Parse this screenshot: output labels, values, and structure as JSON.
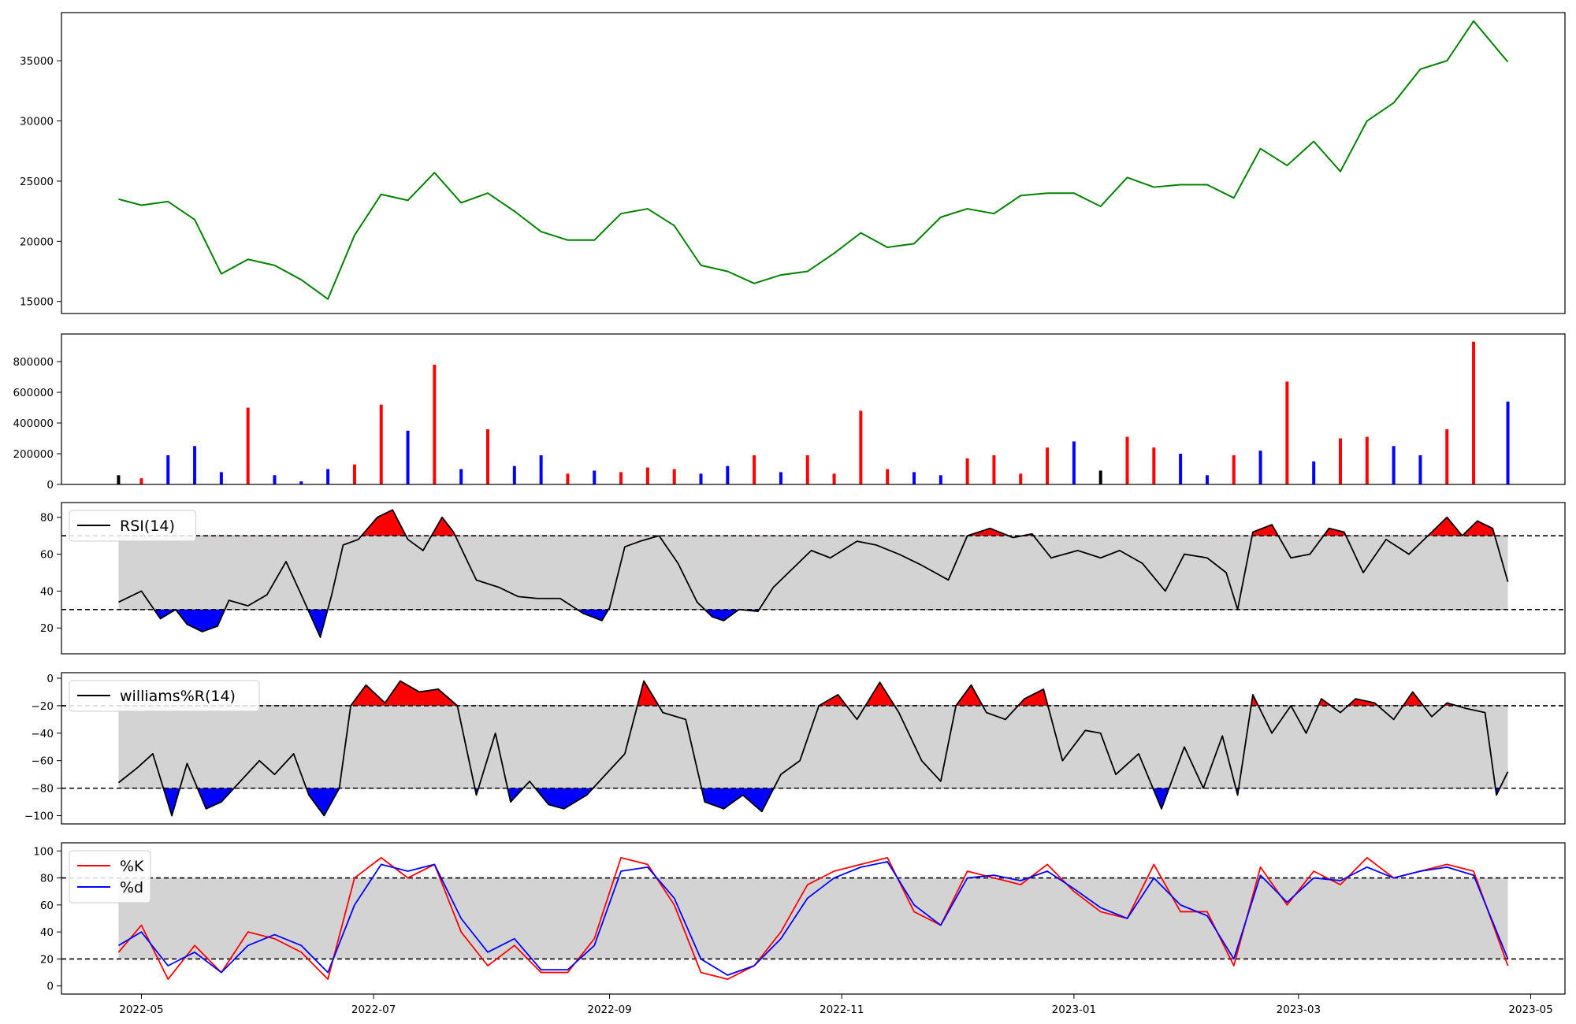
{
  "figure": {
    "x_ticks": [
      "2022-05",
      "2022-07",
      "2022-09",
      "2022-11",
      "2023-01",
      "2023-03",
      "2023-05"
    ]
  },
  "colors": {
    "price": "#008000",
    "up": "#ff0000",
    "down": "#0000ff",
    "flat": "#000000",
    "band": "#d3d3d3",
    "k": "#ff0000",
    "d": "#0000ff"
  },
  "chart_data": [
    {
      "type": "line",
      "x_range": [
        "2022-04-25",
        "2023-04-25"
      ],
      "y_ticks": [
        "15000",
        "20000",
        "25000",
        "30000",
        "35000"
      ],
      "ylim": [
        14000,
        39000
      ],
      "series": [
        {
          "x": [
            "2022-04-25",
            "2022-05-01",
            "2022-05-08",
            "2022-05-15",
            "2022-05-22",
            "2022-05-29",
            "2022-06-05",
            "2022-06-12",
            "2022-06-19",
            "2022-06-26",
            "2022-07-03",
            "2022-07-10",
            "2022-07-17",
            "2022-07-24",
            "2022-07-31",
            "2022-08-07",
            "2022-08-14",
            "2022-08-21",
            "2022-08-28",
            "2022-09-04",
            "2022-09-11",
            "2022-09-18",
            "2022-09-25",
            "2022-10-02",
            "2022-10-09",
            "2022-10-16",
            "2022-10-23",
            "2022-10-30",
            "2022-11-06",
            "2022-11-13",
            "2022-11-20",
            "2022-11-27",
            "2022-12-04",
            "2022-12-11",
            "2022-12-18",
            "2022-12-25",
            "2023-01-01",
            "2023-01-08",
            "2023-01-15",
            "2023-01-22",
            "2023-01-29",
            "2023-02-05",
            "2023-02-12",
            "2023-02-19",
            "2023-02-26",
            "2023-03-05",
            "2023-03-12",
            "2023-03-19",
            "2023-03-26",
            "2023-04-02",
            "2023-04-09",
            "2023-04-16",
            "2023-04-25"
          ],
          "y": [
            23500,
            23000,
            23300,
            21800,
            17300,
            18500,
            18000,
            16800,
            15200,
            20500,
            23900,
            23400,
            25700,
            23200,
            24000,
            22500,
            20800,
            20100,
            20100,
            22300,
            22700,
            21300,
            18000,
            17500,
            16500,
            17200,
            17500,
            19000,
            20700,
            19500,
            19800,
            22000,
            22700,
            22300,
            23800,
            24000,
            24000,
            22900,
            25300,
            24500,
            24700,
            24700,
            23600,
            27700,
            26300,
            28300,
            25800,
            30000,
            31500,
            34300,
            35000,
            38300,
            34900
          ]
        }
      ]
    },
    {
      "type": "bar",
      "x_range": [
        "2022-04-25",
        "2023-04-25"
      ],
      "y_ticks": [
        "0",
        "200000",
        "400000",
        "600000",
        "800000"
      ],
      "ylim": [
        0,
        980000
      ],
      "x": [
        "2022-04-25",
        "2022-05-01",
        "2022-05-08",
        "2022-05-15",
        "2022-05-22",
        "2022-05-29",
        "2022-06-05",
        "2022-06-12",
        "2022-06-19",
        "2022-06-26",
        "2022-07-03",
        "2022-07-10",
        "2022-07-17",
        "2022-07-24",
        "2022-07-31",
        "2022-08-07",
        "2022-08-14",
        "2022-08-21",
        "2022-08-28",
        "2022-09-04",
        "2022-09-11",
        "2022-09-18",
        "2022-09-25",
        "2022-10-02",
        "2022-10-09",
        "2022-10-16",
        "2022-10-23",
        "2022-10-30",
        "2022-11-06",
        "2022-11-13",
        "2022-11-20",
        "2022-11-27",
        "2022-12-04",
        "2022-12-11",
        "2022-12-18",
        "2022-12-25",
        "2023-01-01",
        "2023-01-08",
        "2023-01-15",
        "2023-01-22",
        "2023-01-29",
        "2023-02-05",
        "2023-02-12",
        "2023-02-19",
        "2023-02-26",
        "2023-03-05",
        "2023-03-12",
        "2023-03-19",
        "2023-03-26",
        "2023-04-02",
        "2023-04-09",
        "2023-04-16",
        "2023-04-25"
      ],
      "values": [
        60000,
        40000,
        190000,
        250000,
        80000,
        500000,
        60000,
        20000,
        100000,
        130000,
        520000,
        350000,
        780000,
        100000,
        360000,
        120000,
        190000,
        70000,
        90000,
        80000,
        110000,
        100000,
        70000,
        120000,
        190000,
        80000,
        190000,
        70000,
        480000,
        100000,
        80000,
        60000,
        170000,
        190000,
        70000,
        240000,
        280000,
        90000,
        310000,
        240000,
        200000,
        60000,
        190000,
        220000,
        670000,
        150000,
        300000,
        310000,
        250000,
        190000,
        360000,
        930000,
        540000
      ],
      "direction": [
        "flat",
        "up",
        "down",
        "down",
        "down",
        "up",
        "down",
        "down",
        "down",
        "up",
        "up",
        "down",
        "up",
        "down",
        "up",
        "down",
        "down",
        "up",
        "down",
        "up",
        "up",
        "up",
        "down",
        "down",
        "up",
        "down",
        "up",
        "up",
        "up",
        "up",
        "down",
        "down",
        "up",
        "up",
        "up",
        "up",
        "down",
        "flat",
        "up",
        "up",
        "down",
        "down",
        "up",
        "down",
        "up",
        "down",
        "up",
        "up",
        "down",
        "down",
        "up",
        "up",
        "down"
      ]
    },
    {
      "type": "line",
      "x_range": [
        "2022-04-25",
        "2023-04-25"
      ],
      "y_ticks": [
        "20",
        "40",
        "60",
        "80"
      ],
      "ylim": [
        6,
        88
      ],
      "thresholds": [
        30,
        70
      ],
      "series": [
        {
          "name": "RSI(14)",
          "x": [
            "2022-04-25",
            "2022-05-01",
            "2022-05-06",
            "2022-05-10",
            "2022-05-13",
            "2022-05-17",
            "2022-05-21",
            "2022-05-24",
            "2022-05-29",
            "2022-06-03",
            "2022-06-08",
            "2022-06-12",
            "2022-06-17",
            "2022-06-20",
            "2022-06-23",
            "2022-06-27",
            "2022-07-02",
            "2022-07-06",
            "2022-07-10",
            "2022-07-14",
            "2022-07-19",
            "2022-07-22",
            "2022-07-28",
            "2022-08-03",
            "2022-08-08",
            "2022-08-13",
            "2022-08-19",
            "2022-08-25",
            "2022-08-30",
            "2022-09-01",
            "2022-09-05",
            "2022-09-09",
            "2022-09-14",
            "2022-09-19",
            "2022-09-24",
            "2022-09-28",
            "2022-10-01",
            "2022-10-05",
            "2022-10-10",
            "2022-10-14",
            "2022-10-18",
            "2022-10-24",
            "2022-10-29",
            "2022-11-05",
            "2022-11-10",
            "2022-11-16",
            "2022-11-22",
            "2022-11-29",
            "2022-12-04",
            "2022-12-10",
            "2022-12-16",
            "2022-12-21",
            "2022-12-26",
            "2023-01-02",
            "2023-01-08",
            "2023-01-13",
            "2023-01-19",
            "2023-01-25",
            "2023-01-30",
            "2023-02-05",
            "2023-02-10",
            "2023-02-13",
            "2023-02-17",
            "2023-02-22",
            "2023-02-27",
            "2023-03-04",
            "2023-03-09",
            "2023-03-13",
            "2023-03-18",
            "2023-03-24",
            "2023-03-30",
            "2023-04-04",
            "2023-04-09",
            "2023-04-13",
            "2023-04-17",
            "2023-04-21",
            "2023-04-25"
          ],
          "y": [
            34,
            40,
            25,
            30,
            22,
            18,
            21,
            35,
            32,
            38,
            56,
            38,
            15,
            38,
            65,
            68,
            80,
            84,
            68,
            62,
            80,
            72,
            46,
            42,
            37,
            36,
            36,
            28,
            24,
            31,
            64,
            67,
            70,
            55,
            34,
            26,
            24,
            30,
            29,
            42,
            50,
            62,
            58,
            67,
            65,
            60,
            54,
            46,
            70,
            74,
            69,
            71,
            58,
            62,
            58,
            62,
            55,
            40,
            60,
            58,
            50,
            30,
            72,
            76,
            58,
            60,
            74,
            72,
            50,
            68,
            60,
            70,
            80,
            70,
            78,
            74,
            45
          ]
        }
      ]
    },
    {
      "type": "line",
      "x_range": [
        "2022-04-25",
        "2023-04-25"
      ],
      "y_ticks": [
        "0",
        "−20",
        "−40",
        "−60",
        "−80",
        "−100"
      ],
      "ylim": [
        -106,
        4
      ],
      "thresholds": [
        -20,
        -80
      ],
      "series": [
        {
          "name": "williams%R(14)",
          "x": [
            "2022-04-25",
            "2022-04-30",
            "2022-05-04",
            "2022-05-09",
            "2022-05-13",
            "2022-05-18",
            "2022-05-22",
            "2022-05-27",
            "2022-06-01",
            "2022-06-05",
            "2022-06-10",
            "2022-06-14",
            "2022-06-18",
            "2022-06-22",
            "2022-06-25",
            "2022-06-29",
            "2022-07-04",
            "2022-07-08",
            "2022-07-13",
            "2022-07-18",
            "2022-07-23",
            "2022-07-28",
            "2022-08-02",
            "2022-08-06",
            "2022-08-11",
            "2022-08-16",
            "2022-08-20",
            "2022-08-26",
            "2022-08-31",
            "2022-09-05",
            "2022-09-10",
            "2022-09-15",
            "2022-09-21",
            "2022-09-26",
            "2022-10-01",
            "2022-10-06",
            "2022-10-11",
            "2022-10-16",
            "2022-10-21",
            "2022-10-26",
            "2022-10-31",
            "2022-11-05",
            "2022-11-11",
            "2022-11-16",
            "2022-11-22",
            "2022-11-27",
            "2022-12-01",
            "2022-12-05",
            "2022-12-09",
            "2022-12-14",
            "2022-12-19",
            "2022-12-24",
            "2022-12-29",
            "2023-01-04",
            "2023-01-08",
            "2023-01-12",
            "2023-01-18",
            "2023-01-24",
            "2023-01-30",
            "2023-02-04",
            "2023-02-09",
            "2023-02-13",
            "2023-02-17",
            "2023-02-22",
            "2023-02-27",
            "2023-03-03",
            "2023-03-07",
            "2023-03-12",
            "2023-03-16",
            "2023-03-21",
            "2023-03-26",
            "2023-03-31",
            "2023-04-05",
            "2023-04-09",
            "2023-04-14",
            "2023-04-19",
            "2023-04-22",
            "2023-04-25"
          ],
          "y": [
            -76,
            -65,
            -55,
            -100,
            -62,
            -95,
            -90,
            -75,
            -60,
            -70,
            -55,
            -85,
            -100,
            -80,
            -20,
            -5,
            -18,
            -2,
            -10,
            -8,
            -20,
            -85,
            -40,
            -90,
            -75,
            -92,
            -95,
            -85,
            -70,
            -55,
            -2,
            -25,
            -30,
            -90,
            -95,
            -85,
            -97,
            -70,
            -60,
            -20,
            -12,
            -30,
            -3,
            -25,
            -60,
            -75,
            -20,
            -5,
            -25,
            -30,
            -15,
            -8,
            -60,
            -38,
            -40,
            -70,
            -55,
            -95,
            -50,
            -80,
            -42,
            -85,
            -12,
            -40,
            -20,
            -40,
            -15,
            -25,
            -15,
            -18,
            -30,
            -10,
            -28,
            -18,
            -22,
            -25,
            -85,
            -68
          ]
        }
      ]
    },
    {
      "type": "line",
      "x_range": [
        "2022-04-25",
        "2023-04-25"
      ],
      "y_ticks": [
        "0",
        "20",
        "40",
        "60",
        "80",
        "100"
      ],
      "ylim": [
        -6,
        106
      ],
      "thresholds": [
        20,
        80
      ],
      "series": [
        {
          "name": "%K",
          "x": [
            "2022-04-25",
            "2022-05-01",
            "2022-05-08",
            "2022-05-15",
            "2022-05-22",
            "2022-05-29",
            "2022-06-05",
            "2022-06-12",
            "2022-06-19",
            "2022-06-26",
            "2022-07-03",
            "2022-07-10",
            "2022-07-17",
            "2022-07-24",
            "2022-07-31",
            "2022-08-07",
            "2022-08-14",
            "2022-08-21",
            "2022-08-28",
            "2022-09-04",
            "2022-09-11",
            "2022-09-18",
            "2022-09-25",
            "2022-10-02",
            "2022-10-09",
            "2022-10-16",
            "2022-10-23",
            "2022-10-30",
            "2022-11-06",
            "2022-11-13",
            "2022-11-20",
            "2022-11-27",
            "2022-12-04",
            "2022-12-11",
            "2022-12-18",
            "2022-12-25",
            "2023-01-01",
            "2023-01-08",
            "2023-01-15",
            "2023-01-22",
            "2023-01-29",
            "2023-02-05",
            "2023-02-12",
            "2023-02-19",
            "2023-02-26",
            "2023-03-05",
            "2023-03-12",
            "2023-03-19",
            "2023-03-26",
            "2023-04-02",
            "2023-04-09",
            "2023-04-16",
            "2023-04-25"
          ],
          "y": [
            25,
            45,
            5,
            30,
            10,
            40,
            35,
            25,
            5,
            80,
            95,
            80,
            90,
            40,
            15,
            30,
            10,
            10,
            35,
            95,
            90,
            60,
            10,
            5,
            15,
            40,
            75,
            85,
            90,
            95,
            55,
            45,
            85,
            80,
            75,
            90,
            70,
            55,
            50,
            90,
            55,
            55,
            15,
            88,
            60,
            85,
            75,
            95,
            80,
            85,
            90,
            85,
            15
          ]
        },
        {
          "name": "%d",
          "x": [
            "2022-04-25",
            "2022-05-01",
            "2022-05-08",
            "2022-05-15",
            "2022-05-22",
            "2022-05-29",
            "2022-06-05",
            "2022-06-12",
            "2022-06-19",
            "2022-06-26",
            "2022-07-03",
            "2022-07-10",
            "2022-07-17",
            "2022-07-24",
            "2022-07-31",
            "2022-08-07",
            "2022-08-14",
            "2022-08-21",
            "2022-08-28",
            "2022-09-04",
            "2022-09-11",
            "2022-09-18",
            "2022-09-25",
            "2022-10-02",
            "2022-10-09",
            "2022-10-16",
            "2022-10-23",
            "2022-10-30",
            "2022-11-06",
            "2022-11-13",
            "2022-11-20",
            "2022-11-27",
            "2022-12-04",
            "2022-12-11",
            "2022-12-18",
            "2022-12-25",
            "2023-01-01",
            "2023-01-08",
            "2023-01-15",
            "2023-01-22",
            "2023-01-29",
            "2023-02-05",
            "2023-02-12",
            "2023-02-19",
            "2023-02-26",
            "2023-03-05",
            "2023-03-12",
            "2023-03-19",
            "2023-03-26",
            "2023-04-02",
            "2023-04-09",
            "2023-04-16",
            "2023-04-25"
          ],
          "y": [
            30,
            40,
            15,
            25,
            10,
            30,
            38,
            30,
            10,
            60,
            90,
            85,
            90,
            50,
            25,
            35,
            12,
            12,
            30,
            85,
            88,
            65,
            20,
            8,
            15,
            35,
            65,
            80,
            88,
            92,
            60,
            45,
            80,
            82,
            78,
            85,
            72,
            58,
            50,
            80,
            60,
            52,
            20,
            82,
            62,
            80,
            78,
            88,
            80,
            85,
            88,
            82,
            20
          ]
        }
      ]
    }
  ]
}
